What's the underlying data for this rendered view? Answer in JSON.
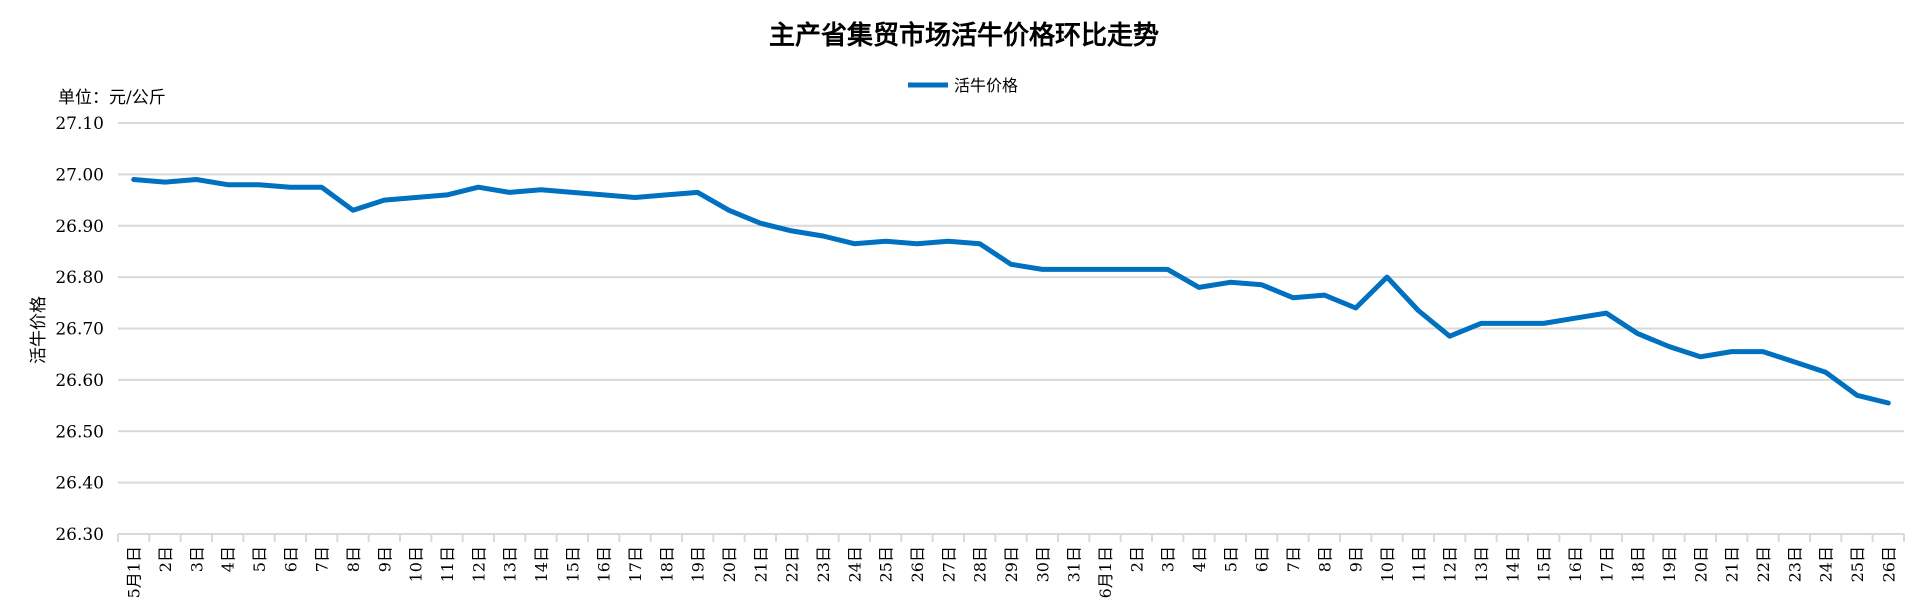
{
  "chart_data": {
    "type": "line",
    "title": "主产省集贸市场活牛价格环比走势",
    "unit_label": "单位：元/公斤",
    "ylabel": "活牛价格",
    "xlabel": "",
    "ylim": [
      26.3,
      27.1
    ],
    "yticks": [
      "26.30",
      "26.40",
      "26.50",
      "26.60",
      "26.70",
      "26.80",
      "26.90",
      "27.00",
      "27.10"
    ],
    "grid": true,
    "legend_position": "top-center",
    "series_color": "#0070C0",
    "categories": [
      "5月1日",
      "2日",
      "3日",
      "4日",
      "5日",
      "6日",
      "7日",
      "8日",
      "9日",
      "10日",
      "11日",
      "12日",
      "13日",
      "14日",
      "15日",
      "16日",
      "17日",
      "18日",
      "19日",
      "20日",
      "21日",
      "22日",
      "23日",
      "24日",
      "25日",
      "26日",
      "27日",
      "28日",
      "29日",
      "30日",
      "31日",
      "6月1日",
      "2日",
      "3日",
      "4日",
      "5日",
      "6日",
      "7日",
      "8日",
      "9日",
      "10日",
      "11日",
      "12日",
      "13日",
      "14日",
      "15日",
      "16日",
      "17日",
      "18日",
      "19日",
      "20日",
      "21日",
      "22日",
      "23日",
      "24日",
      "25日",
      "26日"
    ],
    "series": [
      {
        "name": "活牛价格",
        "values": [
          26.99,
          26.985,
          26.99,
          26.98,
          26.98,
          26.975,
          26.975,
          26.93,
          26.95,
          26.955,
          26.96,
          26.975,
          26.965,
          26.97,
          26.965,
          26.96,
          26.955,
          26.96,
          26.965,
          26.93,
          26.905,
          26.89,
          26.88,
          26.865,
          26.87,
          26.865,
          26.87,
          26.865,
          26.825,
          26.815,
          26.815,
          26.815,
          26.815,
          26.815,
          26.78,
          26.79,
          26.785,
          26.76,
          26.765,
          26.74,
          26.8,
          26.735,
          26.685,
          26.71,
          26.71,
          26.71,
          26.72,
          26.73,
          26.69,
          26.665,
          26.645,
          26.655,
          26.655,
          26.635,
          26.615,
          26.57,
          26.555
        ]
      }
    ]
  }
}
